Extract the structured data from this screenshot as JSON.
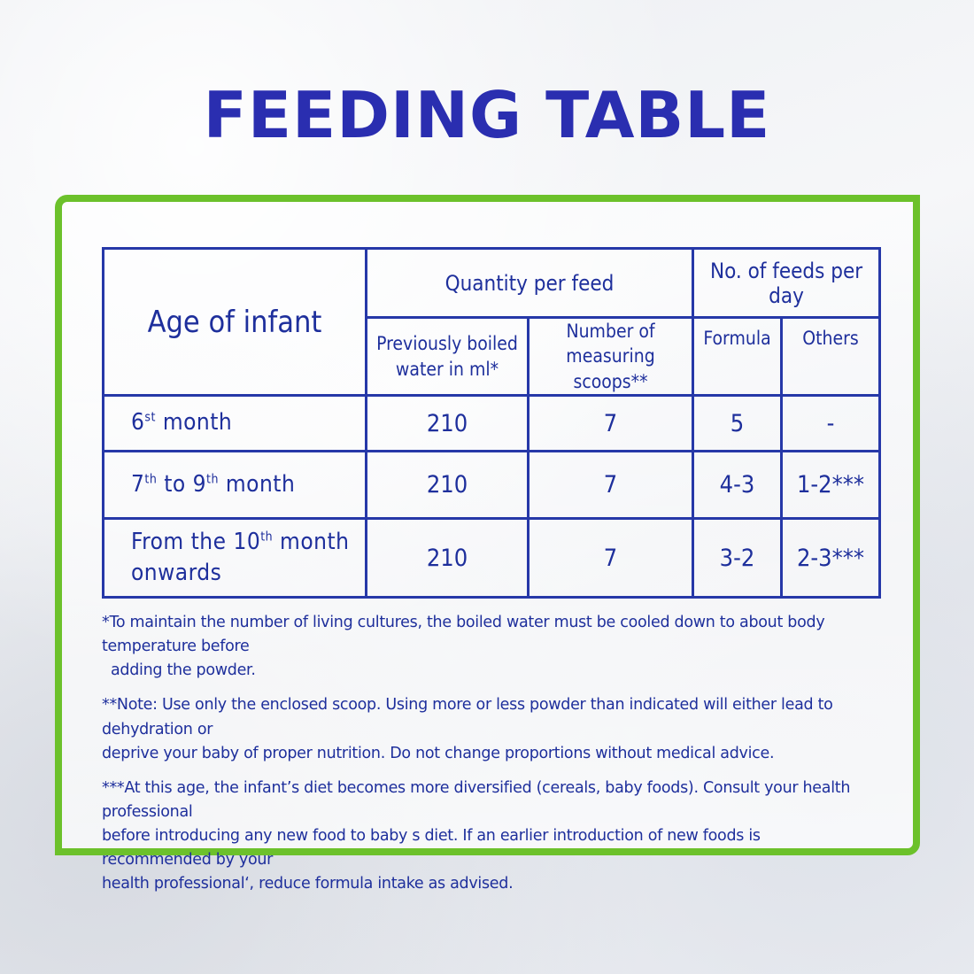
{
  "title": "FEEDING TABLE",
  "table": {
    "age_header": "Age of infant",
    "quantity_header": "Quantity per feed",
    "feeds_header": "No. of feeds per day",
    "water_header_line1": "Previously boiled",
    "water_header_line2": "water in ml*",
    "scoops_header_line1": "Number of",
    "scoops_header_line2": "measuring scoops**",
    "formula_header": "Formula",
    "others_header": "Others",
    "rows": [
      {
        "age_num": "6",
        "age_sup": "st",
        "age_rest": " month",
        "water": "210",
        "scoops": "7",
        "formula": "5",
        "others": "-"
      },
      {
        "age_num": "7",
        "age_sup": "th",
        "age_mid": " to 9",
        "age_sup2": "th",
        "age_rest": " month",
        "water": "210",
        "scoops": "7",
        "formula": "4-3",
        "others": "1-2***"
      },
      {
        "age_pre": "From the 10",
        "age_sup": "th",
        "age_rest": " month",
        "age_line2": "onwards",
        "water": "210",
        "scoops": "7",
        "formula": "3-2",
        "others": "2-3***"
      }
    ]
  },
  "notes": {
    "note1_line1": "*To maintain the number of living cultures, the boiled water must be cooled down to about body temperature before",
    "note1_line2": "adding the powder.",
    "note2_line1": "**Note: Use only the enclosed scoop. Using more or less powder than indicated will either lead to dehydration or",
    "note2_line2": "deprive your baby of proper nutrition. Do not change proportions without medical advice.",
    "note3_line1": "***At this age, the infant’s diet becomes more diversified (cereals, baby foods). Consult your health professional",
    "note3_line2": "before introducing any new food to baby s diet. If an earlier introduction of new foods is recommended by your",
    "note3_line3": "health professional‘, reduce formula  intake as advised."
  },
  "colors": {
    "title": "#2a2eb0",
    "text": "#1e2f9c",
    "frame": "#6cc12b",
    "table_border": "#2638a8"
  }
}
